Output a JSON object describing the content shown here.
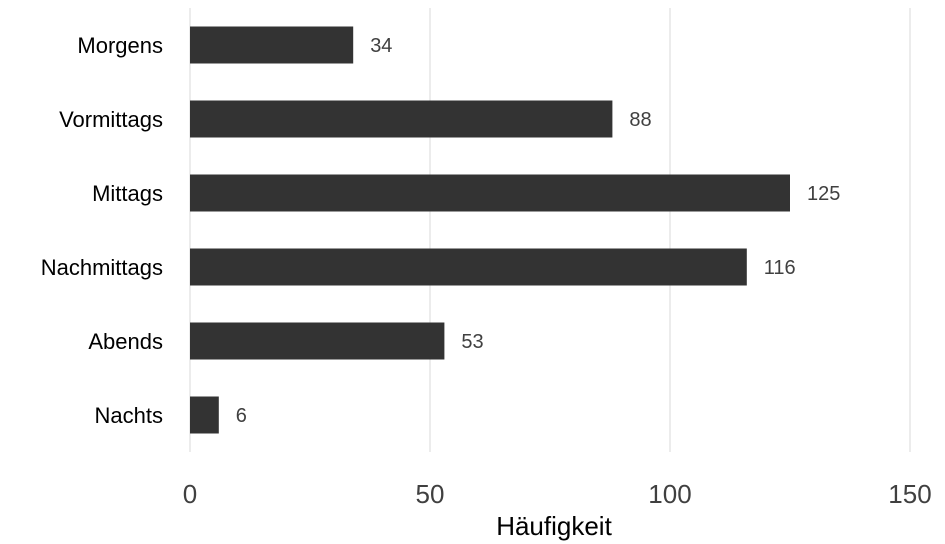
{
  "chart_data": {
    "type": "bar",
    "orientation": "horizontal",
    "categories": [
      "Morgens",
      "Vormittags",
      "Mittags",
      "Nachmittags",
      "Abends",
      "Nachts"
    ],
    "values": [
      34,
      88,
      125,
      116,
      53,
      6
    ],
    "data_labels": [
      "34",
      "88",
      "125",
      "116",
      "53",
      "6"
    ],
    "title": "",
    "xlabel": "Häufigkeit",
    "ylabel": "",
    "xlim": [
      0,
      150
    ],
    "x_ticks": [
      0,
      50,
      100,
      150
    ],
    "x_tick_labels": [
      "0",
      "50",
      "100",
      "150"
    ],
    "grid": "vertical",
    "legend": "none",
    "colors": {
      "bar": "#333333",
      "grid": "#d9d9d9",
      "text": "#000000",
      "tick_text": "#404040"
    }
  }
}
